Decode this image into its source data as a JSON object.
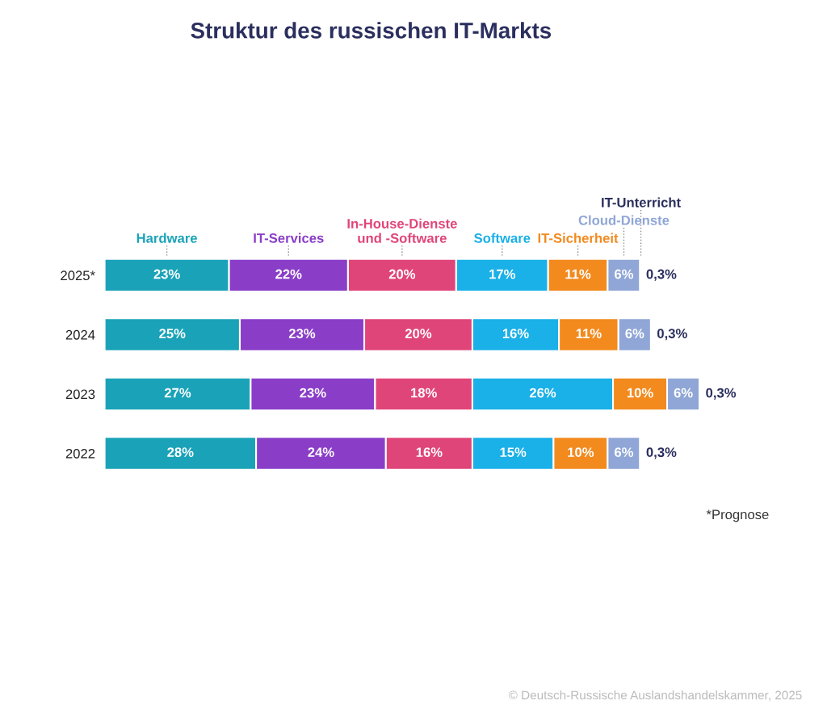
{
  "chart_data": {
    "type": "bar",
    "orientation": "horizontal",
    "stacked": true,
    "title": "Struktur des russischen IT-Markts",
    "categories": [
      "2025*",
      "2024",
      "2023",
      "2022"
    ],
    "series": [
      {
        "name": "Hardware",
        "color": "#1aa3b8",
        "values": [
          23,
          25,
          27,
          28
        ],
        "value_labels": [
          "23%",
          "25%",
          "27%",
          "28%"
        ]
      },
      {
        "name": "IT-Services",
        "color": "#8a3ec8",
        "values": [
          22,
          23,
          23,
          24
        ],
        "value_labels": [
          "22%",
          "23%",
          "23%",
          "24%"
        ]
      },
      {
        "name": "In-House-Dienste\nund -Software",
        "color": "#e0457a",
        "values": [
          20,
          20,
          18,
          16
        ],
        "value_labels": [
          "20%",
          "20%",
          "18%",
          "16%"
        ]
      },
      {
        "name": "Software",
        "color": "#1ab0e8",
        "values": [
          17,
          16,
          26,
          15
        ],
        "value_labels": [
          "17%",
          "16%",
          "26%",
          "15%"
        ]
      },
      {
        "name": "IT-Sicherheit",
        "color": "#f28a1e",
        "values": [
          11,
          11,
          10,
          10
        ],
        "value_labels": [
          "11%",
          "11%",
          "10%",
          "10%"
        ]
      },
      {
        "name": "Cloud-Dienste",
        "color": "#8fa6d6",
        "values": [
          6,
          6,
          6,
          6
        ],
        "value_labels": [
          "6%",
          "6%",
          "6%",
          "6%"
        ]
      },
      {
        "name": "IT-Unterricht",
        "color": "#2b2f5e",
        "values": [
          0.3,
          0.3,
          0.3,
          0.3
        ],
        "value_labels": [
          "0,3%",
          "0,3%",
          "0,3%",
          "0,3%"
        ]
      }
    ],
    "legend": "top",
    "annotations": [
      "*Prognose",
      "© Deutsch-Russische Auslandshandelskammer, 2025"
    ]
  }
}
